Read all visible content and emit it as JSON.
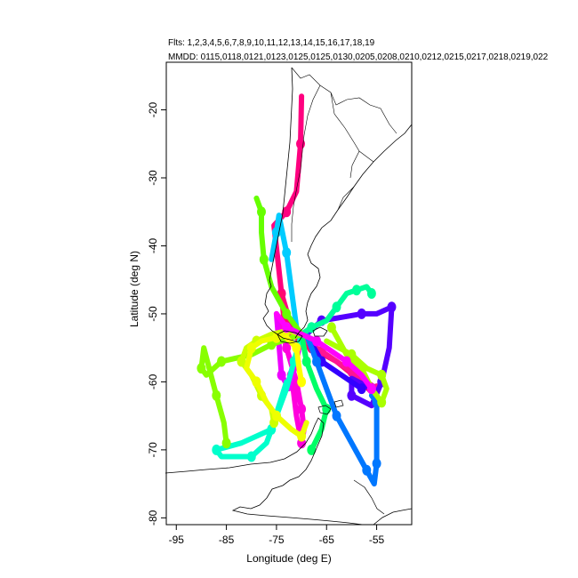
{
  "header": {
    "flights_line": "Flts: 1,2,3,4,5,6,7,8,9,10,11,12,13,14,15,16,17,18,19",
    "dates_line": "MMDD: 0115,0118,0121,0123,0125,0125,0130,0205,0208,0210,0212,0215,0217,0218,0219,022"
  },
  "chart_data": {
    "type": "map-track",
    "xlabel": "Longitude (deg E)",
    "ylabel": "Latitude (deg N)",
    "xlim": [
      -97,
      -48
    ],
    "ylim": [
      -81,
      -13
    ],
    "x_ticks": [
      -95,
      -85,
      -75,
      -65,
      -55
    ],
    "y_ticks": [
      -20,
      -30,
      -40,
      -50,
      -60,
      -70,
      -80
    ],
    "x_tick_labels": [
      "-95",
      "-85",
      "-75",
      "-65",
      "-55"
    ],
    "y_tick_labels": [
      "-20",
      "-30",
      "-40",
      "-50",
      "-60",
      "-70",
      "-80"
    ],
    "coastline_color": "#000000",
    "tracks": [
      {
        "id": "f1",
        "color": "#ff007f",
        "lon": [
          -70,
          -70.2,
          -71,
          -73,
          -75.5,
          -74,
          -72,
          -70,
          -67
        ],
        "lat": [
          -18,
          -25,
          -32,
          -35,
          -37,
          -47,
          -52,
          -54,
          -56
        ]
      },
      {
        "id": "f2",
        "color": "#ff0a6e",
        "lon": [
          -74,
          -73.5,
          -72,
          -68,
          -63,
          -58,
          -56
        ],
        "lat": [
          -47,
          -51,
          -53,
          -55,
          -57,
          -60,
          -61.5
        ]
      },
      {
        "id": "f3",
        "color": "#ff1493",
        "lon": [
          -70,
          -66,
          -62,
          -60,
          -57,
          -55
        ],
        "lat": [
          -53.5,
          -55.5,
          -57.5,
          -58.5,
          -60,
          -61
        ]
      },
      {
        "id": "f4",
        "color": "#ff00dd",
        "lon": [
          -75,
          -73,
          -71,
          -70,
          -69.5,
          -70,
          -71,
          -72
        ],
        "lat": [
          -50,
          -55,
          -60,
          -64,
          -67,
          -69,
          -65,
          -59
        ]
      },
      {
        "id": "f5",
        "color": "#ee00ff",
        "lon": [
          -70,
          -71,
          -72.5,
          -74,
          -75
        ],
        "lat": [
          -53,
          -57,
          -61,
          -59,
          -50
        ]
      },
      {
        "id": "f6",
        "color": "#5500ff",
        "lon": [
          -69,
          -66,
          -62,
          -58,
          -55,
          -52,
          -52.5,
          -54,
          -56,
          -60,
          -60,
          -56,
          -55
        ],
        "lat": [
          -53,
          -51,
          -50.5,
          -50,
          -50,
          -49,
          -55,
          -60,
          -63.5,
          -62,
          -59.5,
          -61,
          -63
        ]
      },
      {
        "id": "f7",
        "color": "#3300ff",
        "lon": [
          -69,
          -66,
          -62,
          -58
        ],
        "lat": [
          -53,
          -57,
          -59,
          -61
        ]
      },
      {
        "id": "f8",
        "color": "#0077ff",
        "lon": [
          -69,
          -67,
          -65,
          -63,
          -60,
          -57,
          -55.5,
          -55,
          -55,
          -55,
          -56
        ],
        "lat": [
          -53,
          -57,
          -61,
          -65,
          -69,
          -73,
          -75,
          -72,
          -68,
          -63,
          -62
        ]
      },
      {
        "id": "f9",
        "color": "#00ccff",
        "lon": [
          -76,
          -75,
          -74.5,
          -73,
          -71
        ],
        "lat": [
          -42,
          -38,
          -35.5,
          -41,
          -52
        ]
      },
      {
        "id": "f10",
        "color": "#00ffcc",
        "lon": [
          -70,
          -71.5,
          -73,
          -75,
          -77,
          -80,
          -86,
          -87,
          -82,
          -76,
          -73
        ],
        "lat": [
          -53,
          -57,
          -61,
          -65,
          -69,
          -71,
          -71,
          -70,
          -69,
          -67,
          -60
        ]
      },
      {
        "id": "f11",
        "color": "#00ff99",
        "lon": [
          -70,
          -68,
          -65,
          -63,
          -61,
          -59,
          -57,
          -56
        ],
        "lat": [
          -53,
          -52,
          -51,
          -49,
          -47,
          -46.5,
          -46,
          -47
        ]
      },
      {
        "id": "f12",
        "color": "#00ff66",
        "lon": [
          -70,
          -69,
          -67,
          -65,
          -66,
          -68
        ],
        "lat": [
          -53,
          -57,
          -61,
          -64,
          -67,
          -70
        ]
      },
      {
        "id": "f13",
        "color": "#66ff00",
        "lon": [
          -70,
          -73,
          -76,
          -77.5,
          -78,
          -78,
          -79
        ],
        "lat": [
          -53,
          -50,
          -46,
          -42,
          -38,
          -35,
          -33
        ]
      },
      {
        "id": "f14",
        "color": "#88ff00",
        "lon": [
          -70,
          -76,
          -80,
          -86,
          -89,
          -90,
          -89.5,
          -87,
          -85.5,
          -85
        ],
        "lat": [
          -53,
          -54.5,
          -56,
          -57,
          -59,
          -58,
          -55,
          -62,
          -66,
          -69
        ]
      },
      {
        "id": "f15",
        "color": "#aaff00",
        "lon": [
          -65,
          -60,
          -57,
          -54,
          -53,
          -54,
          -56,
          -58,
          -61,
          -64
        ],
        "lat": [
          -54,
          -56,
          -58,
          -59,
          -61,
          -63,
          -61,
          -58,
          -56,
          -52
        ]
      },
      {
        "id": "f16",
        "color": "#ccff00",
        "lon": [
          -70,
          -73,
          -76,
          -79,
          -81,
          -82,
          -80,
          -78,
          -76,
          -75.5
        ],
        "lat": [
          -53,
          -52.5,
          -53,
          -54,
          -55,
          -57,
          -59,
          -62,
          -64,
          -66
        ]
      },
      {
        "id": "f17",
        "color": "#eeff00",
        "lon": [
          -73,
          -75,
          -78,
          -80,
          -81,
          -79,
          -77,
          -75,
          -72,
          -70,
          -69
        ],
        "lat": [
          -53,
          -53.5,
          -54,
          -55,
          -58,
          -60,
          -63,
          -65,
          -67,
          -68,
          -66
        ]
      },
      {
        "id": "f18",
        "color": "#ffff00",
        "lon": [
          -73,
          -71,
          -70.5,
          -70
        ],
        "lat": [
          -53.5,
          -55,
          -58,
          -60
        ]
      },
      {
        "id": "f19",
        "color": "#ff00ff",
        "lon": [
          -75,
          -73,
          -70,
          -67,
          -64,
          -61,
          -58,
          -56
        ],
        "lat": [
          -50,
          -52,
          -53,
          -54,
          -55.5,
          -57,
          -59,
          -61
        ]
      }
    ]
  }
}
